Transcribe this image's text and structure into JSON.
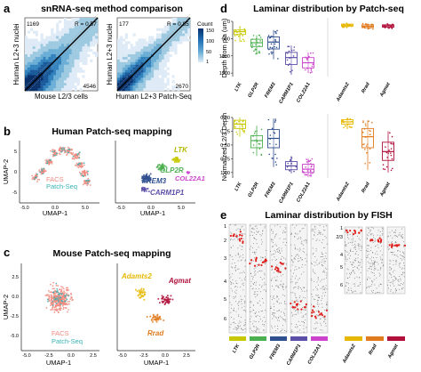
{
  "panel_a": {
    "letter": "a",
    "title": "snRNA-seq method comparison",
    "chart_data": [
      {
        "type": "heatmap",
        "xlabel": "Mouse L2/3 cells",
        "ylabel": "Human L2+3 nuclei",
        "corner_top": "1169",
        "corner_bottom": "4546",
        "r_label": "R = 0.57",
        "r": 0.57
      },
      {
        "type": "heatmap",
        "xlabel": "Human L2+3 Patch-Seq",
        "ylabel": "Human L2+3 nuclei",
        "corner_top": "177",
        "corner_bottom": "2670",
        "r_label": "R = 0.85",
        "r": 0.85
      }
    ],
    "colorbar": {
      "title": "Count",
      "ticks": [
        "150",
        "100",
        "50",
        "1"
      ],
      "colors": [
        "#08306b",
        "#2171b5",
        "#6baed6",
        "#c6dbef"
      ]
    }
  },
  "panel_b": {
    "letter": "b",
    "title": "Human Patch-seq mapping",
    "left": {
      "xlabel": "UMAP-1",
      "ylabel": "UMAP-2",
      "x_ticks": [
        "-5.0",
        "0.0",
        "5.0"
      ],
      "y_ticks": [
        "5",
        "0",
        "-5"
      ],
      "legend": [
        {
          "label": "FACS",
          "color": "#f08a7e"
        },
        {
          "label": "Patch-Seq",
          "color": "#3bb3b3"
        }
      ]
    },
    "right": {
      "xlabel": "UMAP-1",
      "x_ticks": [
        "-5.0",
        "0.0",
        "5.0"
      ],
      "labels": [
        {
          "label": "LTK",
          "color": "#c8c800"
        },
        {
          "label": "GLP2R",
          "color": "#4caf50"
        },
        {
          "label": "FREM3",
          "color": "#2f4f8f"
        },
        {
          "label": "COL22A1",
          "color": "#cc44cc"
        },
        {
          "label": "CARM1P1",
          "color": "#5b4fa8"
        }
      ]
    }
  },
  "panel_c": {
    "letter": "c",
    "title": "Mouse Patch-seq mapping",
    "left": {
      "xlabel": "UMAP-1",
      "ylabel": "UMAP-2",
      "x_ticks": [
        "-5.0",
        "-2.5",
        "0.0",
        "2.5"
      ],
      "y_ticks": [
        "2.5",
        "0.0",
        "-2.5",
        "-5.0"
      ],
      "legend": [
        {
          "label": "FACS",
          "color": "#f08a7e"
        },
        {
          "label": "Patch-Seq",
          "color": "#3bb3b3"
        }
      ]
    },
    "right": {
      "xlabel": "UMAP-1",
      "x_ticks": [
        "-5.0",
        "-2.5",
        "0.0",
        "2.5"
      ],
      "labels": [
        {
          "label": "Adamts2",
          "color": "#e6b800"
        },
        {
          "label": "Agmat",
          "color": "#b0103a"
        },
        {
          "label": "Rrad",
          "color": "#e07b20"
        }
      ]
    }
  },
  "panel_d": {
    "letter": "d",
    "title": "Laminar distribution by Patch-seq",
    "chart_data": [
      {
        "type": "box",
        "ylabel": "Depth from pia (um)",
        "y_ticks": [
          "0",
          "500",
          "1000",
          "1500"
        ],
        "ylim": [
          0,
          1600
        ],
        "y_inverted": true,
        "groups": [
          {
            "name": "LTK",
            "median": 300,
            "q1": 250,
            "q3": 380,
            "min": 150,
            "max": 600,
            "color": "#c8c800"
          },
          {
            "name": "GLP2R",
            "median": 620,
            "q1": 520,
            "q3": 730,
            "min": 400,
            "max": 950,
            "color": "#4caf50"
          },
          {
            "name": "FREM3",
            "median": 600,
            "q1": 450,
            "q3": 800,
            "min": 250,
            "max": 1100,
            "color": "#2f4f8f"
          },
          {
            "name": "CARM1P1",
            "median": 1050,
            "q1": 900,
            "q3": 1250,
            "min": 700,
            "max": 1550,
            "color": "#5b4fa8"
          },
          {
            "name": "COL22A1",
            "median": 1200,
            "q1": 1050,
            "q3": 1350,
            "min": 900,
            "max": 1500,
            "color": "#cc44cc"
          },
          {
            "name": "Adamts2",
            "median": 110,
            "q1": 80,
            "q3": 140,
            "min": 50,
            "max": 180,
            "color": "#e6b800"
          },
          {
            "name": "Rrad",
            "median": 140,
            "q1": 100,
            "q3": 180,
            "min": 60,
            "max": 230,
            "color": "#e07b20"
          },
          {
            "name": "Agmat",
            "median": 130,
            "q1": 100,
            "q3": 170,
            "min": 70,
            "max": 220,
            "color": "#b0103a"
          }
        ]
      },
      {
        "type": "box",
        "ylabel": "Normalized L2/3 Depth",
        "y_ticks": [
          "0.00",
          "0.25",
          "0.50",
          "0.75",
          "1.00"
        ],
        "ylim": [
          0,
          1.1
        ],
        "y_inverted": true,
        "groups": [
          {
            "name": "LTK",
            "median": 0.12,
            "q1": 0.05,
            "q3": 0.2,
            "min": 0.0,
            "max": 0.35,
            "color": "#c8c800"
          },
          {
            "name": "GLP2R",
            "median": 0.42,
            "q1": 0.33,
            "q3": 0.55,
            "min": 0.15,
            "max": 0.7,
            "color": "#4caf50"
          },
          {
            "name": "FREM3",
            "median": 0.38,
            "q1": 0.22,
            "q3": 0.55,
            "min": 0.02,
            "max": 0.9,
            "color": "#2f4f8f"
          },
          {
            "name": "CARM1P1",
            "median": 0.88,
            "q1": 0.8,
            "q3": 0.95,
            "min": 0.7,
            "max": 1.02,
            "color": "#5b4fa8"
          },
          {
            "name": "COL22A1",
            "median": 0.94,
            "q1": 0.85,
            "q3": 1.0,
            "min": 0.75,
            "max": 1.08,
            "color": "#cc44cc"
          },
          {
            "name": "Adamts2",
            "median": 0.08,
            "q1": 0.04,
            "q3": 0.12,
            "min": 0.0,
            "max": 0.2,
            "color": "#e6b800"
          },
          {
            "name": "Rrad",
            "median": 0.35,
            "q1": 0.2,
            "q3": 0.55,
            "min": 0.05,
            "max": 0.95,
            "color": "#e07b20"
          },
          {
            "name": "Agmat",
            "median": 0.62,
            "q1": 0.45,
            "q3": 0.78,
            "min": 0.25,
            "max": 1.0,
            "color": "#b0103a"
          }
        ]
      }
    ]
  },
  "panel_e": {
    "letter": "e",
    "title": "Laminar distribution by FISH",
    "human_layers": [
      "1",
      "2",
      "3",
      "4",
      "5",
      "6"
    ],
    "mouse_layers": [
      "1",
      "2/3",
      "4",
      "5",
      "6"
    ],
    "human_probes": [
      {
        "name": "LTK",
        "color": "#c8c800"
      },
      {
        "name": "GLP2R",
        "color": "#4caf50"
      },
      {
        "name": "FREM3",
        "color": "#2f4f8f"
      },
      {
        "name": "CARM1P1",
        "color": "#5b4fa8"
      },
      {
        "name": "COL22A1",
        "color": "#cc44cc"
      }
    ],
    "mouse_probes": [
      {
        "name": "Adamts2",
        "color": "#e6b800"
      },
      {
        "name": "Rrad",
        "color": "#e07b20"
      },
      {
        "name": "Agmat",
        "color": "#b0103a"
      }
    ]
  }
}
